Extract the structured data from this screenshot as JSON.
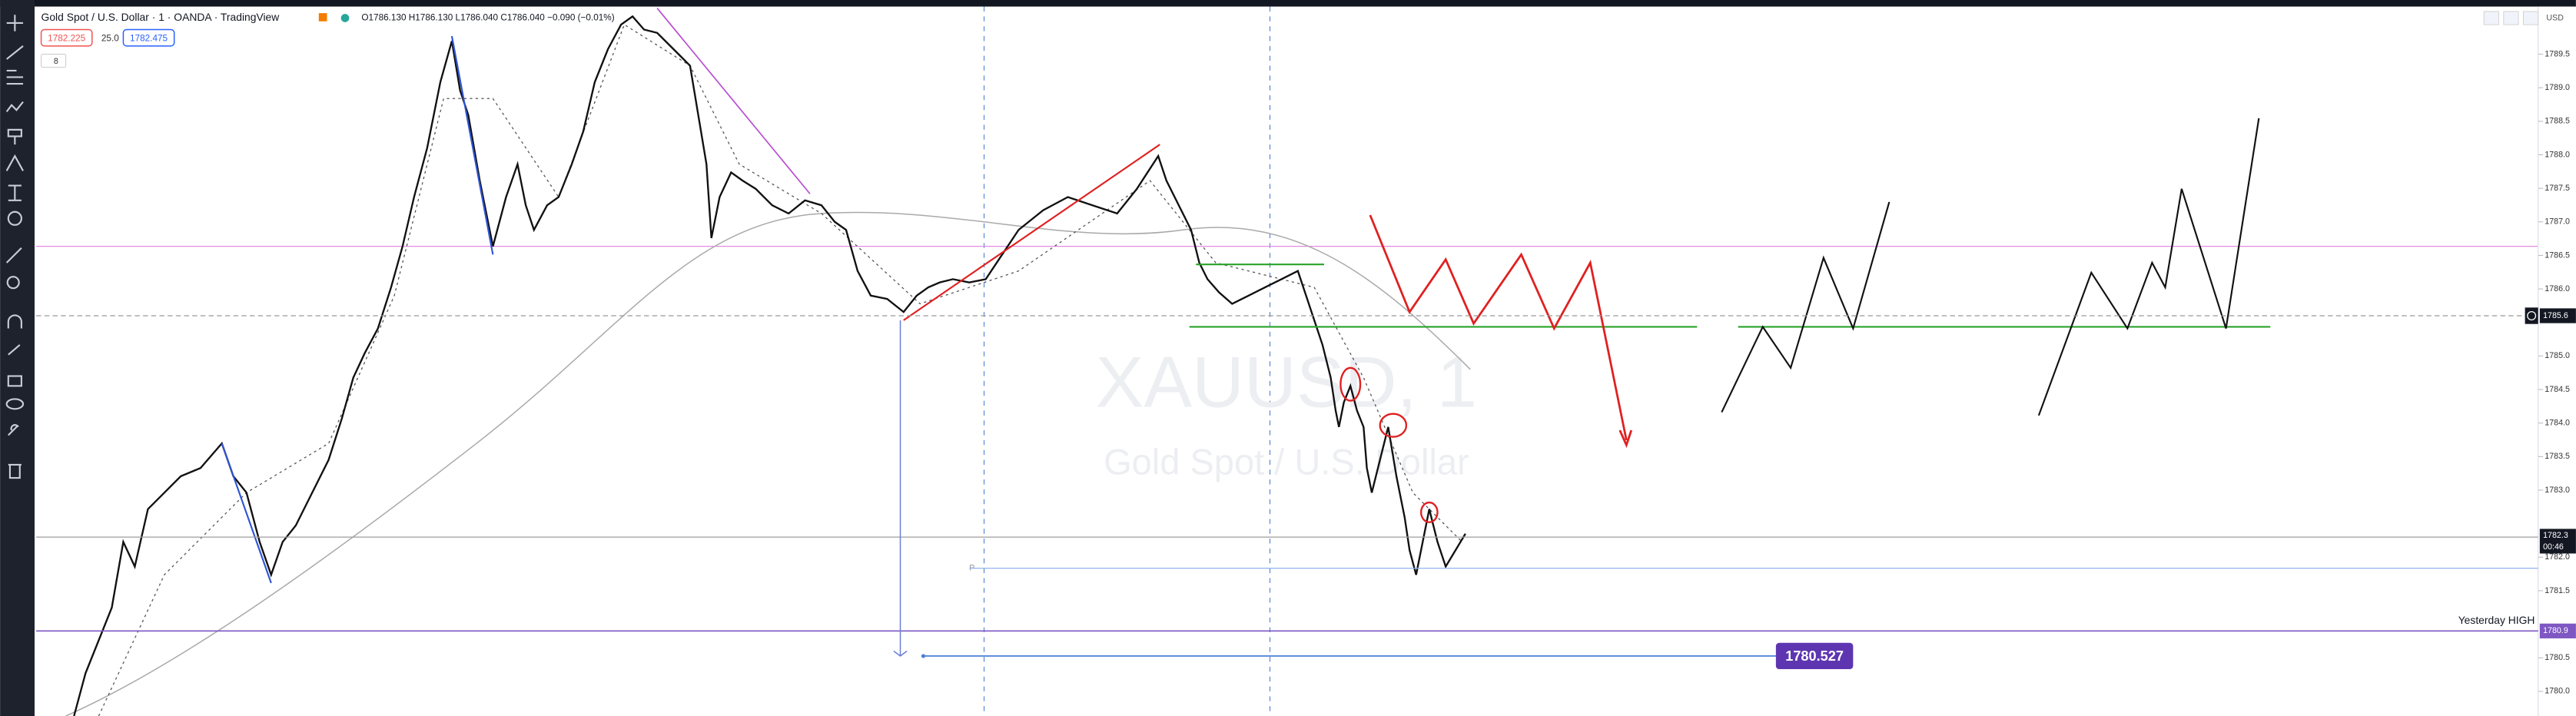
{
  "header": {
    "title": "Gold Spot / U.S. Dollar · 1 · OANDA · TradingView",
    "ohlc": "O1786.130 H1786.130 L1786.040 C1786.040 −0.090 (−0.01%)",
    "sell": "1782.225",
    "spread": "25.0",
    "buy": "1782.475",
    "indicators": "8"
  },
  "watermark": {
    "symbol": "XAUUSD, 1",
    "name": "Gold Spot / U.S. Dollar"
  },
  "price_axis": {
    "currency": "USD",
    "ticks": [
      1789.5,
      {
        "value": 1789,
        "label": "1789.0"
      },
      1788.5,
      {
        "value": 1788,
        "label": "1788.0"
      },
      1787.5,
      {
        "value": 1787,
        "label": "1787.0"
      },
      1786.5,
      {
        "value": 1786,
        "label": "1786.0"
      },
      {
        "value": 1785,
        "label": "1785.0"
      },
      1784.5,
      {
        "value": 1784,
        "label": "1784.0"
      },
      1783.5,
      {
        "value": 1783,
        "label": "1783.0"
      },
      {
        "value": 1782,
        "label": "1782.0"
      },
      1781.5,
      1780.5,
      {
        "value": 1780,
        "label": "1780.0"
      }
    ]
  },
  "price_tags": {
    "last": 1782.3,
    "countdown": "00:46",
    "alert": 1785.6,
    "yesterday_high": 1780.9
  },
  "annotations": {
    "yesterday_high": "Yesterday HIGH",
    "measure": 1780.527
  }
}
